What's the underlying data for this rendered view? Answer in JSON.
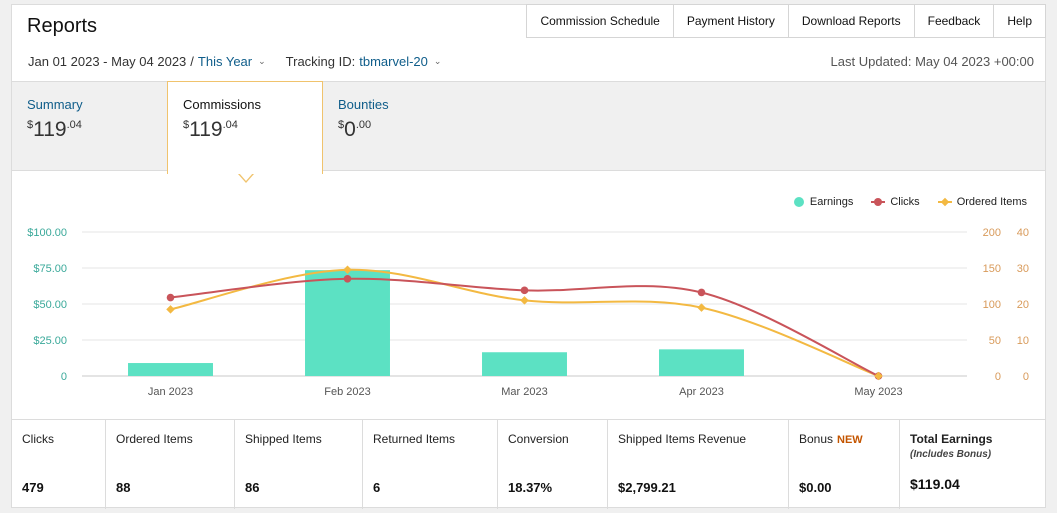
{
  "header": {
    "title": "Reports",
    "nav": [
      "Commission Schedule",
      "Payment History",
      "Download Reports",
      "Feedback",
      "Help"
    ]
  },
  "filters": {
    "date_range": "Jan 01 2023 - May 04 2023",
    "separator": "/",
    "period": "This Year",
    "tracking_label": "Tracking ID:",
    "tracking_id": "tbmarvel-20",
    "last_updated": "Last Updated: May 04 2023 +00:00"
  },
  "tabs": {
    "summary": {
      "label": "Summary",
      "currency": "$",
      "whole": "119",
      "cents": ".04"
    },
    "commissions": {
      "label": "Commissions",
      "currency": "$",
      "whole": "119",
      "cents": ".04"
    },
    "bounties": {
      "label": "Bounties",
      "currency": "$",
      "whole": "0",
      "cents": ".00"
    }
  },
  "colors": {
    "earnings": "#5ce1c3",
    "clicks": "#c9545a",
    "ordered": "#f3b942",
    "axis_left": "#3aa99a",
    "axis_right": "#d89a5a"
  },
  "chart_data": {
    "type": "bar",
    "categories": [
      "Jan 2023",
      "Feb 2023",
      "Mar 2023",
      "Apr 2023",
      "May 2023"
    ],
    "legend": [
      "Earnings",
      "Clicks",
      "Ordered Items"
    ],
    "legend_position": "top-right",
    "y_left": {
      "ticks": [
        "0",
        "$25.00",
        "$50.00",
        "$75.00",
        "$100.00"
      ],
      "range": [
        0,
        100
      ]
    },
    "y_right_clicks": {
      "ticks": [
        "0",
        "50",
        "100",
        "150",
        "200"
      ],
      "range": [
        0,
        200
      ]
    },
    "y_right_items": {
      "ticks": [
        "0",
        "10",
        "20",
        "30",
        "40"
      ],
      "range": [
        0,
        40
      ]
    },
    "grid": true,
    "series": [
      {
        "name": "Earnings",
        "type": "bar",
        "axis": "left",
        "values": [
          9,
          73.5,
          16.5,
          18.5,
          0
        ]
      },
      {
        "name": "Clicks",
        "type": "line",
        "axis": "clicks",
        "values": [
          109,
          135,
          119,
          116,
          0
        ]
      },
      {
        "name": "Ordered Items",
        "type": "line",
        "axis": "items",
        "values": [
          18.5,
          29.5,
          21,
          19,
          0
        ]
      }
    ]
  },
  "stats": [
    {
      "key": "clicks",
      "label": "Clicks",
      "value": "479"
    },
    {
      "key": "ordered",
      "label": "Ordered Items",
      "value": "88"
    },
    {
      "key": "shipped",
      "label": "Shipped Items",
      "value": "86"
    },
    {
      "key": "returned",
      "label": "Returned Items",
      "value": "6"
    },
    {
      "key": "conversion",
      "label": "Conversion",
      "value": "18.37%"
    },
    {
      "key": "revenue",
      "label": "Shipped Items Revenue",
      "value": "$2,799.21"
    },
    {
      "key": "bonus",
      "label": "Bonus",
      "badge": "NEW",
      "value": "$0.00"
    },
    {
      "key": "total",
      "label": "Total Earnings",
      "sub": "(Includes Bonus)",
      "value": "$119.04"
    }
  ]
}
